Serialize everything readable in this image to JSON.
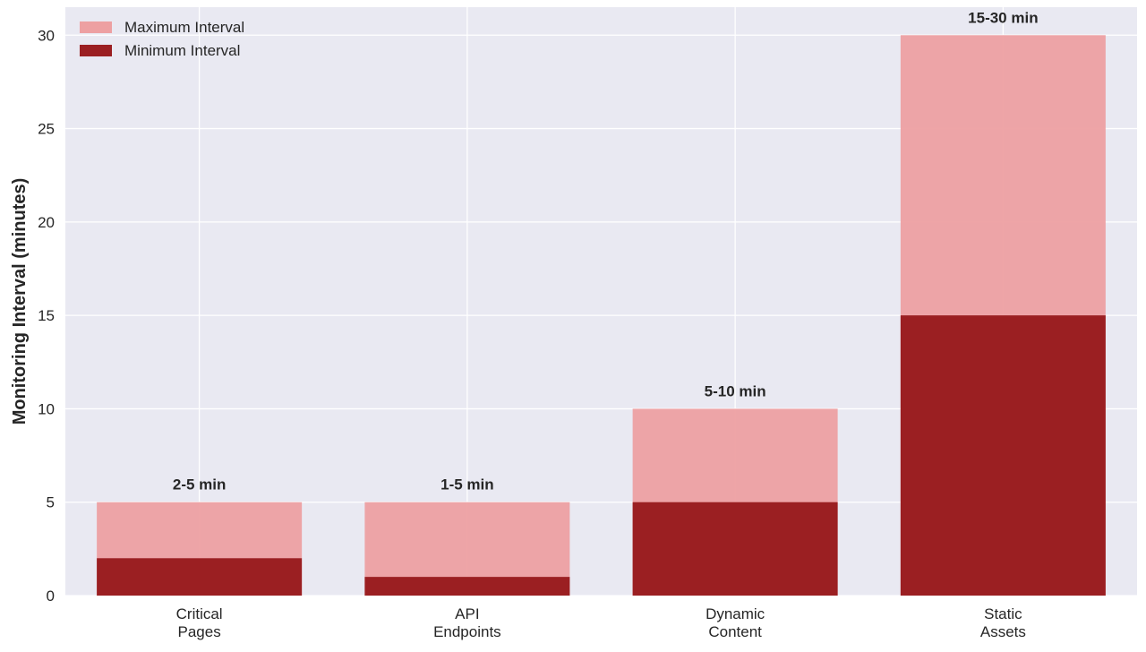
{
  "chart_data": {
    "type": "bar",
    "title": "",
    "xlabel": "",
    "ylabel": "Monitoring Interval (minutes)",
    "categories": [
      [
        "Critical",
        "Pages"
      ],
      [
        "API",
        "Endpoints"
      ],
      [
        "Dynamic",
        "Content"
      ],
      [
        "Static",
        "Assets"
      ]
    ],
    "series": [
      {
        "name": "Maximum Interval",
        "values": [
          5,
          5,
          10,
          30
        ],
        "color": "#eda0a2"
      },
      {
        "name": "Minimum Interval",
        "values": [
          2,
          1,
          5,
          15
        ],
        "color": "#9b1f22"
      }
    ],
    "data_labels": [
      "2-5 min",
      "1-5 min",
      "5-10 min",
      "15-30 min"
    ],
    "yticks": [
      0,
      5,
      10,
      15,
      20,
      25,
      30
    ],
    "ylim": [
      0,
      31.5
    ],
    "grid": true,
    "legend": "top-left",
    "background": "#e9e9f2",
    "gridcolor": "#ffffff"
  }
}
